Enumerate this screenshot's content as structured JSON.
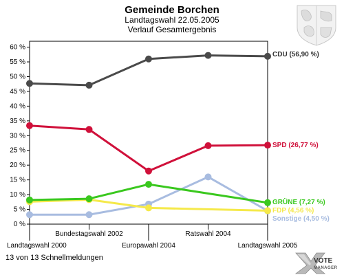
{
  "header": {
    "title": "Gemeinde Borchen",
    "subtitle": "Landtagswahl 22.05.2005",
    "subtitle2": "Verlauf Gesamtergebnis"
  },
  "footer": {
    "status": "13 von 13 Schnellmeldungen"
  },
  "logo": {
    "text": "VOTE",
    "subtext": "MANAGER",
    "icon": "vote-manager-x-icon"
  },
  "coat_of_arms": {
    "icon": "coat-of-arms-icon"
  },
  "chart_data": {
    "type": "line",
    "title": "Gemeinde Borchen",
    "subtitle": "Landtagswahl 22.05.2005",
    "subtitle2": "Verlauf Gesamtergebnis",
    "x": [
      "Landtagswahl 2000",
      "Bundestagswahl 2002",
      "Europawahl 2004",
      "Ratswahl 2004",
      "Landtagswahl 2005"
    ],
    "ylim": [
      0,
      62
    ],
    "yticks": [
      0,
      5,
      10,
      15,
      20,
      25,
      30,
      35,
      40,
      45,
      50,
      55,
      60
    ],
    "ytick_labels": [
      "0 %",
      "5 %",
      "10 %",
      "15 %",
      "20 %",
      "25 %",
      "30 %",
      "35 %",
      "40 %",
      "45 %",
      "50 %",
      "55 %",
      "60 %"
    ],
    "grid": false,
    "series": [
      {
        "name": "CDU",
        "label": "CDU (56,90 %)",
        "color": "#4a4a4a",
        "values": [
          47.7,
          47.1,
          56.0,
          57.2,
          56.9
        ]
      },
      {
        "name": "SPD",
        "label": "SPD (26,77 %)",
        "color": "#d0103a",
        "values": [
          33.4,
          32.1,
          18.0,
          26.6,
          26.77
        ]
      },
      {
        "name": "GRÜNE",
        "label": "GRÜNE (7,27 %)",
        "color": "#3ac81e",
        "values": [
          8.2,
          8.6,
          13.5,
          null,
          7.27
        ]
      },
      {
        "name": "FDP",
        "label": "FDP (4,56 %)",
        "color": "#f5e94a",
        "values": [
          7.6,
          8.3,
          5.5,
          null,
          4.56
        ]
      },
      {
        "name": "Sonstige",
        "label": "Sonstige (4,50 %)",
        "color": "#a8bce0",
        "values": [
          3.2,
          3.2,
          6.8,
          16.0,
          4.5
        ]
      }
    ]
  }
}
